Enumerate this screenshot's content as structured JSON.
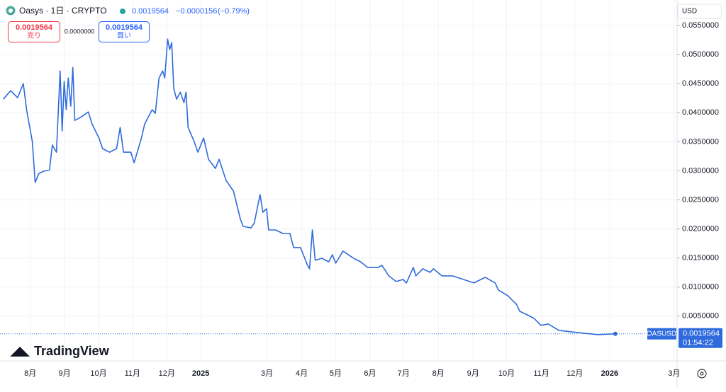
{
  "header": {
    "symbol": "Oasys · 1日 · CRYPTO",
    "last": "0.0019564",
    "change": "−0.0000156",
    "change_pct": "(−0.79%)",
    "sell_price": "0.0019564",
    "sell_label": "売り",
    "spread": "0.0000000",
    "buy_price": "0.0019564",
    "buy_label": "買い",
    "currency": "USD",
    "ticker": "OASUSD",
    "countdown": "01:54:22",
    "logo": "TradingView"
  },
  "chart_data": {
    "type": "line",
    "color": "#2f6bdc",
    "grid": true,
    "xlim": [
      2024.509,
      2026.165
    ],
    "xticks": [
      {
        "value": 2024.583,
        "label": "8月"
      },
      {
        "value": 2024.667,
        "label": "9月"
      },
      {
        "value": 2024.75,
        "label": "10月"
      },
      {
        "value": 2024.833,
        "label": "11月"
      },
      {
        "value": 2024.917,
        "label": "12月"
      },
      2025,
      {
        "value": 2025.162,
        "label": "3月"
      },
      {
        "value": 2025.247,
        "label": "4月"
      },
      {
        "value": 2025.33,
        "label": "5月"
      },
      {
        "value": 2025.414,
        "label": "6月"
      },
      {
        "value": 2025.496,
        "label": "7月"
      },
      {
        "value": 2025.581,
        "label": "8月"
      },
      {
        "value": 2025.666,
        "label": "9月"
      },
      {
        "value": 2025.748,
        "label": "10月"
      },
      {
        "value": 2025.833,
        "label": "11月"
      },
      {
        "value": 2025.915,
        "label": "12月"
      },
      2026,
      {
        "value": 2026.158,
        "label": "3月"
      }
    ],
    "ylim": [
      -0.0027,
      0.0594
    ],
    "yticks": [
      {
        "value": 0.005,
        "label": "0.0050000"
      },
      {
        "value": 0.01,
        "label": "0.0100000"
      },
      {
        "value": 0.015,
        "label": "0.0150000"
      },
      {
        "value": 0.02,
        "label": "0.0200000"
      },
      {
        "value": 0.025,
        "label": "0.0250000"
      },
      {
        "value": 0.03,
        "label": "0.0300000"
      },
      {
        "value": 0.035,
        "label": "0.0350000"
      },
      {
        "value": 0.04,
        "label": "0.0400000"
      },
      {
        "value": 0.045,
        "label": "0.0450000"
      },
      {
        "value": 0.05,
        "label": "0.0500000"
      },
      {
        "value": 0.055,
        "label": "0.0550000"
      }
    ],
    "x": [
      2024.517,
      2024.535,
      2024.552,
      2024.566,
      2024.574,
      2024.588,
      2024.595,
      2024.604,
      2024.616,
      2024.63,
      2024.637,
      2024.647,
      2024.656,
      2024.661,
      2024.666,
      2024.671,
      2024.676,
      2024.682,
      2024.687,
      2024.692,
      2024.708,
      2024.725,
      2024.734,
      2024.751,
      2024.76,
      2024.777,
      2024.794,
      2024.803,
      2024.811,
      2024.829,
      2024.837,
      2024.855,
      2024.863,
      2024.881,
      2024.889,
      2024.898,
      2024.907,
      2024.912,
      2024.919,
      2024.924,
      2024.929,
      2024.934,
      2024.941,
      2024.95,
      2024.959,
      2024.964,
      2024.969,
      2024.984,
      2024.993,
      2025.007,
      2025.019,
      2025.036,
      2025.045,
      2025.062,
      2025.08,
      2025.097,
      2025.104,
      2025.123,
      2025.131,
      2025.145,
      2025.152,
      2025.161,
      2025.166,
      2025.183,
      2025.201,
      2025.218,
      2025.227,
      2025.244,
      2025.261,
      2025.266,
      2025.273,
      2025.28,
      2025.296,
      2025.313,
      2025.322,
      2025.33,
      2025.348,
      2025.374,
      2025.391,
      2025.408,
      2025.434,
      2025.443,
      2025.46,
      2025.478,
      2025.495,
      2025.503,
      2025.52,
      2025.526,
      2025.543,
      2025.561,
      2025.569,
      2025.59,
      2025.616,
      2025.642,
      2025.668,
      2025.696,
      2025.72,
      2025.728,
      2025.751,
      2025.763,
      2025.772,
      2025.78,
      2025.798,
      2025.815,
      2025.832,
      2025.85,
      2025.876,
      2025.919,
      2025.971,
      2026.014
    ],
    "values": [
      0.04233,
      0.04379,
      0.04258,
      0.04501,
      0.04051,
      0.03504,
      0.02798,
      0.02956,
      0.02993,
      0.03017,
      0.03443,
      0.03321,
      0.0472,
      0.03686,
      0.04538,
      0.04051,
      0.04598,
      0.04112,
      0.04781,
      0.03868,
      0.03929,
      0.04014,
      0.03808,
      0.03564,
      0.03382,
      0.03321,
      0.03382,
      0.03747,
      0.03321,
      0.03321,
      0.03139,
      0.03564,
      0.03808,
      0.04051,
      0.0399,
      0.04598,
      0.0472,
      0.04598,
      0.05267,
      0.05085,
      0.05207,
      0.04416,
      0.04233,
      0.04355,
      0.04173,
      0.04355,
      0.03747,
      0.03504,
      0.03321,
      0.03564,
      0.03199,
      0.03041,
      0.03199,
      0.02834,
      0.02652,
      0.02165,
      0.02044,
      0.02019,
      0.02105,
      0.02591,
      0.02287,
      0.02348,
      0.01983,
      0.01983,
      0.01922,
      0.01922,
      0.01679,
      0.01679,
      0.01375,
      0.01314,
      0.01983,
      0.0146,
      0.01496,
      0.01435,
      0.01557,
      0.01411,
      0.01618,
      0.01496,
      0.01435,
      0.01338,
      0.01338,
      0.01375,
      0.01192,
      0.01095,
      0.01131,
      0.01071,
      0.01338,
      0.01192,
      0.01314,
      0.01253,
      0.01314,
      0.01192,
      0.01192,
      0.01131,
      0.01071,
      0.01168,
      0.01071,
      0.00949,
      0.00852,
      0.00766,
      0.00706,
      0.00584,
      0.00523,
      0.00462,
      0.00341,
      0.00365,
      0.00255,
      0.00219,
      0.00182,
      0.0019564
    ]
  }
}
